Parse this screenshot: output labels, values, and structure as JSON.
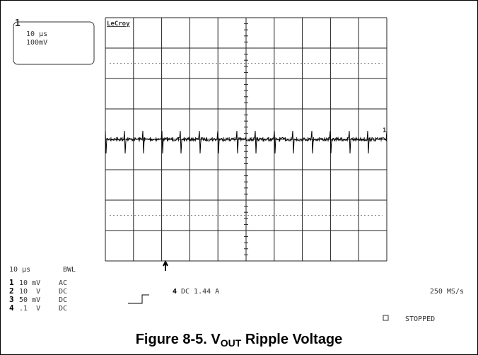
{
  "timebox": {
    "marker": "1",
    "timebase": "10 µs",
    "scale": "100mV"
  },
  "brand": "LeCroy",
  "trace_marker": "1",
  "status": {
    "timebase": "10 µs",
    "bwl": "BWL"
  },
  "channels": [
    {
      "number": "1",
      "scale": "10 mV",
      "coupling": "AC"
    },
    {
      "number": "2",
      "scale": "10  V",
      "coupling": "DC"
    },
    {
      "number": "3",
      "scale": "50 mV",
      "coupling": "DC"
    },
    {
      "number": "4",
      "scale": ".1  V",
      "coupling": "DC"
    }
  ],
  "trigger": {
    "source": "4",
    "text": "DC 1.44 A"
  },
  "sample_rate": "250 MS/s",
  "state": "STOPPED",
  "caption": {
    "prefix": "Figure 8-5. V",
    "subscript": "OUT",
    "suffix": " Ripple Voltage"
  }
}
